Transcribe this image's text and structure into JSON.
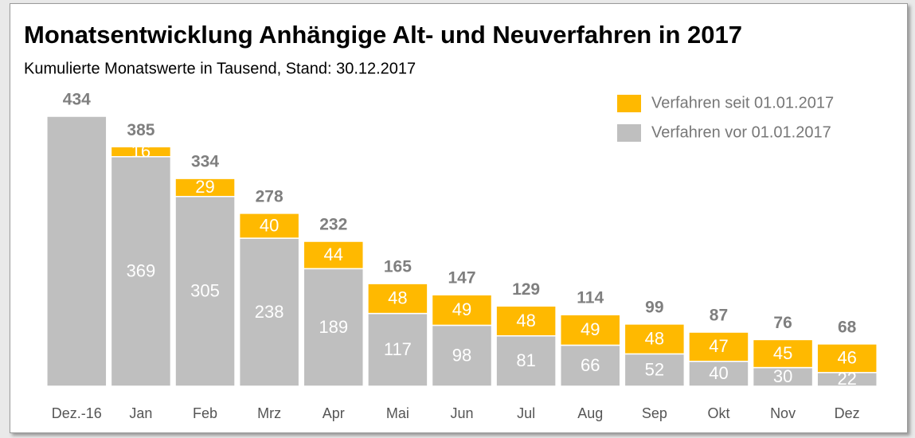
{
  "chart_data": {
    "type": "stacked-bar",
    "title": "Monatsentwicklung Anhängige Alt- und Neuverfahren in 2017",
    "subtitle": "Kumulierte Monatswerte in Tausend, Stand: 30.12.2017",
    "categories": [
      "Dez.-16",
      "Jan",
      "Feb",
      "Mrz",
      "Apr",
      "Mai",
      "Jun",
      "Jul",
      "Aug",
      "Sep",
      "Okt",
      "Nov",
      "Dez"
    ],
    "series": [
      {
        "name": "Verfahren vor 01.01.2017",
        "color": "#bfbfbf",
        "values": [
          434,
          369,
          305,
          238,
          189,
          117,
          98,
          81,
          66,
          52,
          40,
          30,
          22
        ]
      },
      {
        "name": "Verfahren seit 01.01.2017",
        "color": "#ffb900",
        "values": [
          null,
          16,
          29,
          40,
          44,
          48,
          49,
          48,
          49,
          48,
          47,
          45,
          46
        ]
      }
    ],
    "totals": [
      434,
      385,
      334,
      278,
      232,
      165,
      147,
      129,
      114,
      99,
      87,
      76,
      68
    ],
    "legend": "top-right"
  }
}
